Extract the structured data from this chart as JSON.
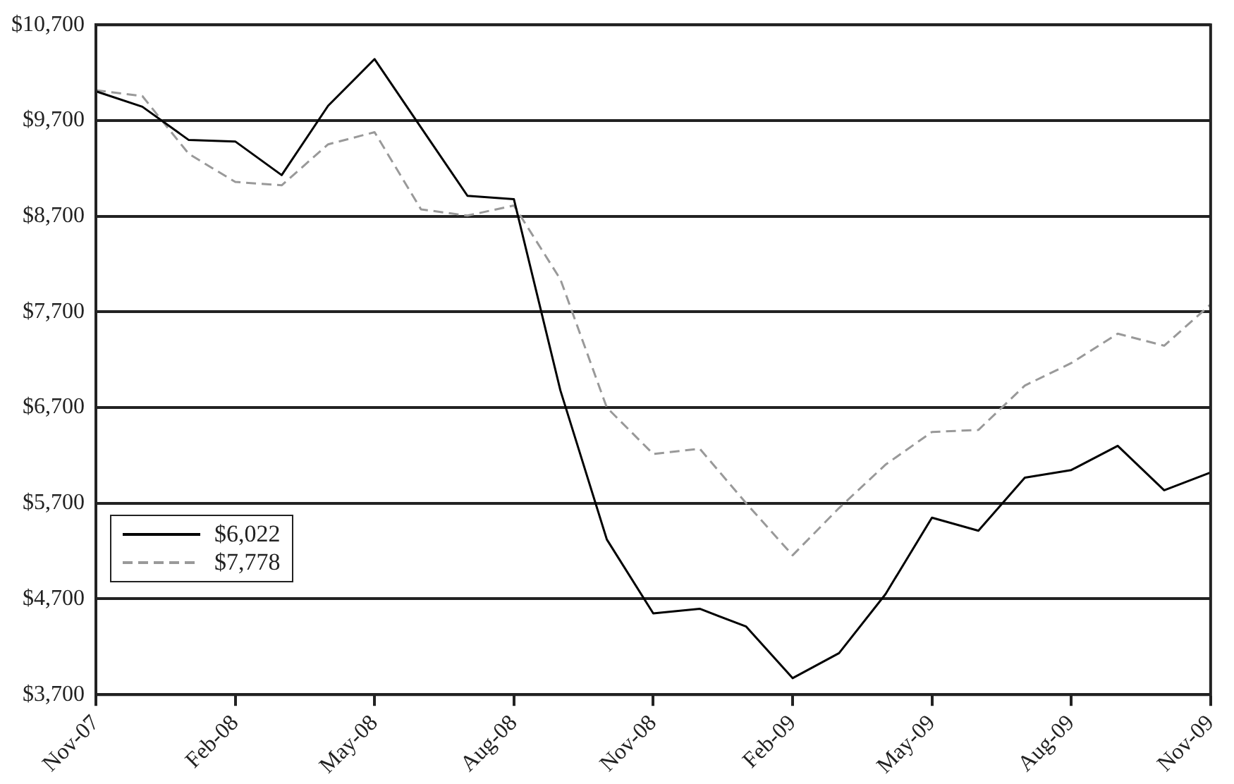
{
  "chart_data": {
    "type": "line",
    "categories": [
      "Nov-07",
      null,
      null,
      "Feb-08",
      null,
      null,
      "May-08",
      null,
      null,
      "Aug-08",
      null,
      null,
      "Nov-08",
      null,
      null,
      "Feb-09",
      null,
      null,
      "May-09",
      null,
      null,
      "Aug-09",
      null,
      null,
      "Nov-09"
    ],
    "series": [
      {
        "name": "$6,022",
        "color": "#000000",
        "line_style": "solid",
        "values": [
          10005,
          9844,
          9496,
          9481,
          9129,
          9854,
          10342,
          9627,
          8913,
          8877,
          6880,
          5322,
          4549,
          4597,
          4411,
          3872,
          4134,
          4750,
          5549,
          5413,
          5967,
          6047,
          6300,
          5836,
          6022
        ]
      },
      {
        "name": "$7,778",
        "color": "#999999",
        "line_style": "dashed",
        "values": [
          10016,
          9955,
          9351,
          9058,
          9023,
          9451,
          9578,
          8771,
          8706,
          8812,
          8041,
          6700,
          6214,
          6270,
          5700,
          5156,
          5650,
          6103,
          6445,
          6466,
          6930,
          7165,
          7472,
          7346,
          7778
        ]
      }
    ],
    "ylim": [
      3700,
      10700
    ],
    "yticks": [
      {
        "value": 3700,
        "label": "$3,700"
      },
      {
        "value": 4700,
        "label": "$4,700"
      },
      {
        "value": 5700,
        "label": "$5,700"
      },
      {
        "value": 6700,
        "label": "$6,700"
      },
      {
        "value": 7700,
        "label": "$7,700"
      },
      {
        "value": 8700,
        "label": "$8,700"
      },
      {
        "value": 9700,
        "label": "$9,700"
      },
      {
        "value": 10700,
        "label": "$10,700"
      }
    ],
    "grid": "y",
    "legend": "bottom left",
    "marker": "none"
  }
}
